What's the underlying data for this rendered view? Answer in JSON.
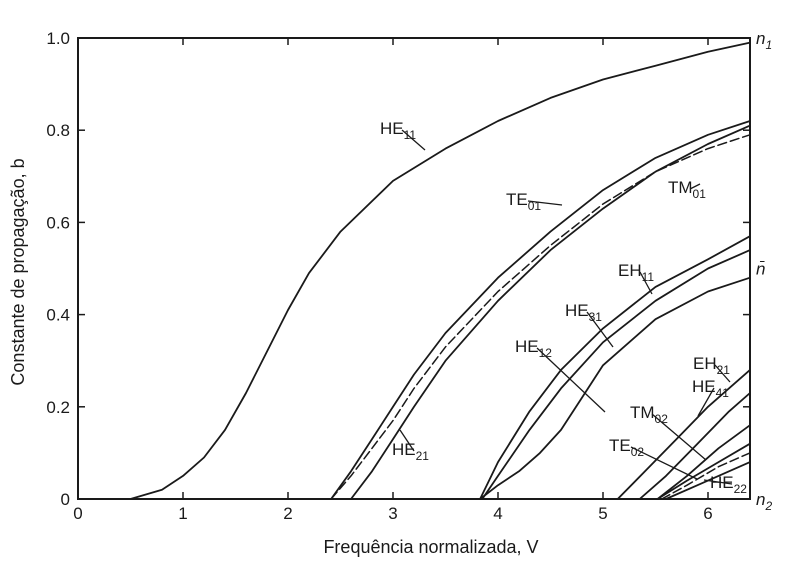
{
  "chart_data": {
    "type": "line",
    "xlabel": "Frequência normalizada, V",
    "ylabel": "Constante de propagação, b",
    "xlim": [
      0,
      6.4
    ],
    "ylim": [
      0,
      1.0
    ],
    "grid": false,
    "x_ticks": [
      "0",
      "1",
      "2",
      "3",
      "4",
      "5",
      "6"
    ],
    "y_ticks": [
      "0",
      "0.2",
      "0.4",
      "0.6",
      "0.8",
      "1.0"
    ],
    "right_labels": [
      {
        "text": "n",
        "sub": "1",
        "y": 1.0
      },
      {
        "text": "n̄",
        "sub": "",
        "y": 0.5
      },
      {
        "text": "n",
        "sub": "2",
        "y": 0.0
      }
    ],
    "series": [
      {
        "name": "HE11",
        "label_text": "HE",
        "label_sub": "11",
        "style": "solid",
        "x": [
          0.5,
          0.8,
          1.0,
          1.2,
          1.4,
          1.6,
          1.8,
          2.0,
          2.2,
          2.5,
          3.0,
          3.5,
          4.0,
          4.5,
          5.0,
          5.5,
          6.0,
          6.4
        ],
        "y": [
          0.0,
          0.02,
          0.05,
          0.09,
          0.15,
          0.23,
          0.32,
          0.41,
          0.49,
          0.58,
          0.69,
          0.76,
          0.82,
          0.87,
          0.91,
          0.94,
          0.97,
          0.99
        ]
      },
      {
        "name": "TE01",
        "label_text": "TE",
        "label_sub": "01",
        "style": "solid",
        "x": [
          2.41,
          2.6,
          2.8,
          3.0,
          3.2,
          3.5,
          4.0,
          4.5,
          5.0,
          5.5,
          6.0,
          6.4
        ],
        "y": [
          0.0,
          0.06,
          0.13,
          0.2,
          0.27,
          0.36,
          0.48,
          0.58,
          0.67,
          0.74,
          0.79,
          0.82
        ]
      },
      {
        "name": "HE21",
        "label_text": "HE",
        "label_sub": "21",
        "style": "solid",
        "x": [
          2.6,
          2.8,
          3.0,
          3.2,
          3.5,
          4.0,
          4.5,
          5.0,
          5.5,
          6.0,
          6.4
        ],
        "y": [
          0.0,
          0.06,
          0.13,
          0.2,
          0.3,
          0.43,
          0.54,
          0.63,
          0.71,
          0.77,
          0.81
        ]
      },
      {
        "name": "TM01",
        "label_text": "TM",
        "label_sub": "01",
        "style": "dashed",
        "x": [
          2.41,
          2.6,
          2.8,
          3.0,
          3.2,
          3.5,
          4.0,
          4.5,
          5.0,
          5.5,
          6.0,
          6.4
        ],
        "y": [
          0.0,
          0.05,
          0.11,
          0.17,
          0.24,
          0.33,
          0.45,
          0.55,
          0.64,
          0.71,
          0.76,
          0.79
        ]
      },
      {
        "name": "EH11",
        "label_text": "EH",
        "label_sub": "11",
        "style": "solid",
        "x": [
          3.83,
          4.0,
          4.3,
          4.6,
          5.0,
          5.5,
          6.0,
          6.4
        ],
        "y": [
          0.0,
          0.08,
          0.19,
          0.28,
          0.37,
          0.46,
          0.52,
          0.57
        ]
      },
      {
        "name": "HE31",
        "label_text": "HE",
        "label_sub": "31",
        "style": "solid",
        "x": [
          3.85,
          4.0,
          4.3,
          4.6,
          5.0,
          5.5,
          6.0,
          6.4
        ],
        "y": [
          0.0,
          0.05,
          0.15,
          0.24,
          0.34,
          0.43,
          0.5,
          0.54
        ]
      },
      {
        "name": "HE12",
        "label_text": "HE",
        "label_sub": "12",
        "style": "solid",
        "x": [
          3.83,
          4.0,
          4.2,
          4.4,
          4.6,
          4.8,
          5.0,
          5.5,
          6.0,
          6.4
        ],
        "y": [
          0.0,
          0.03,
          0.06,
          0.1,
          0.15,
          0.22,
          0.29,
          0.39,
          0.45,
          0.48
        ]
      },
      {
        "name": "EH21",
        "label_text": "EH",
        "label_sub": "21",
        "style": "solid",
        "x": [
          5.14,
          5.4,
          5.7,
          6.0,
          6.4
        ],
        "y": [
          0.0,
          0.06,
          0.13,
          0.2,
          0.28
        ]
      },
      {
        "name": "HE41",
        "label_text": "HE",
        "label_sub": "41",
        "style": "solid",
        "x": [
          5.35,
          5.6,
          5.9,
          6.2,
          6.4
        ],
        "y": [
          0.0,
          0.05,
          0.12,
          0.19,
          0.23
        ]
      },
      {
        "name": "TM02",
        "label_text": "TM",
        "label_sub": "02",
        "style": "solid",
        "x": [
          5.52,
          5.8,
          6.1,
          6.4
        ],
        "y": [
          0.0,
          0.05,
          0.11,
          0.16
        ]
      },
      {
        "name": "TE02",
        "label_text": "TE",
        "label_sub": "02",
        "style": "solid",
        "x": [
          5.52,
          5.8,
          6.1,
          6.4
        ],
        "y": [
          0.0,
          0.04,
          0.08,
          0.12
        ]
      },
      {
        "name": "HE22",
        "label_text": "HE",
        "label_sub": "22",
        "style": "dashed",
        "x": [
          5.56,
          5.8,
          6.1,
          6.4
        ],
        "y": [
          0.0,
          0.03,
          0.07,
          0.1
        ]
      },
      {
        "name": "HE22b",
        "label_text": "",
        "label_sub": "",
        "style": "solid",
        "x": [
          5.6,
          5.9,
          6.2,
          6.4
        ],
        "y": [
          0.0,
          0.03,
          0.06,
          0.08
        ]
      }
    ]
  }
}
